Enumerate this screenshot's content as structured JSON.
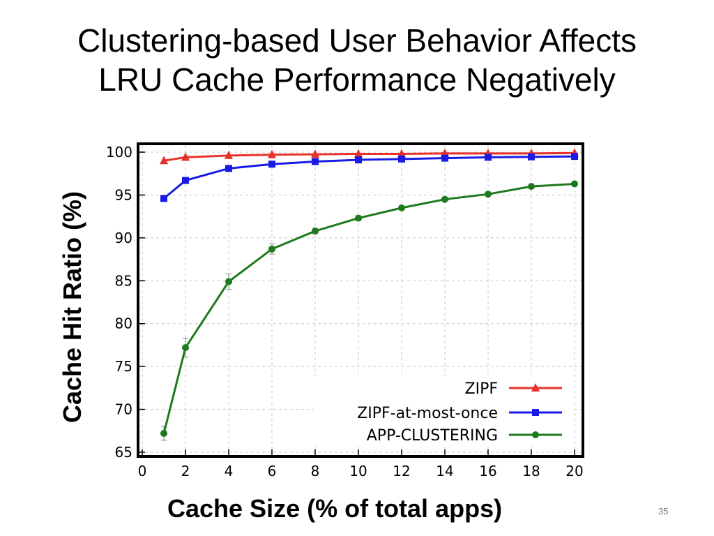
{
  "slide": {
    "title_lines": [
      "Clustering-based User Behavior Affects",
      "LRU Cache Performance Negatively"
    ],
    "page_number": "35"
  },
  "chart_data": {
    "type": "line",
    "xlabel": "Cache Size (% of total apps)",
    "ylabel": "Cache Hit Ratio (%)",
    "xlim": [
      0,
      20
    ],
    "ylim": [
      65,
      100
    ],
    "xticks": [
      0,
      2,
      4,
      6,
      8,
      10,
      12,
      14,
      16,
      18,
      20
    ],
    "yticks": [
      65,
      70,
      75,
      80,
      85,
      90,
      95,
      100
    ],
    "grid": true,
    "legend_position": "bottom-right",
    "series": [
      {
        "name": "ZIPF",
        "color": "#e8312a",
        "marker": "triangle",
        "x": [
          1,
          2,
          4,
          6,
          8,
          10,
          12,
          14,
          16,
          18,
          20
        ],
        "y": [
          99.0,
          99.4,
          99.6,
          99.7,
          99.75,
          99.8,
          99.8,
          99.85,
          99.85,
          99.85,
          99.9
        ]
      },
      {
        "name": "ZIPF-at-most-once",
        "color": "#1a1ae6",
        "marker": "square",
        "x": [
          1,
          2,
          4,
          6,
          8,
          10,
          12,
          14,
          16,
          18,
          20
        ],
        "y": [
          94.6,
          96.7,
          98.1,
          98.6,
          98.9,
          99.1,
          99.2,
          99.3,
          99.4,
          99.45,
          99.5
        ]
      },
      {
        "name": "APP-CLUSTERING",
        "color": "#1e7a1e",
        "marker": "circle",
        "x": [
          1,
          2,
          4,
          6,
          8,
          10,
          12,
          14,
          16,
          18,
          20
        ],
        "y": [
          67.2,
          77.2,
          84.9,
          88.7,
          90.8,
          92.3,
          93.5,
          94.5,
          95.1,
          96.0,
          96.3
        ],
        "err": [
          0.8,
          1.1,
          0.9,
          0.6,
          0.3,
          0.3,
          0.2,
          0.2,
          0.2,
          0.2,
          0.2
        ]
      }
    ]
  }
}
